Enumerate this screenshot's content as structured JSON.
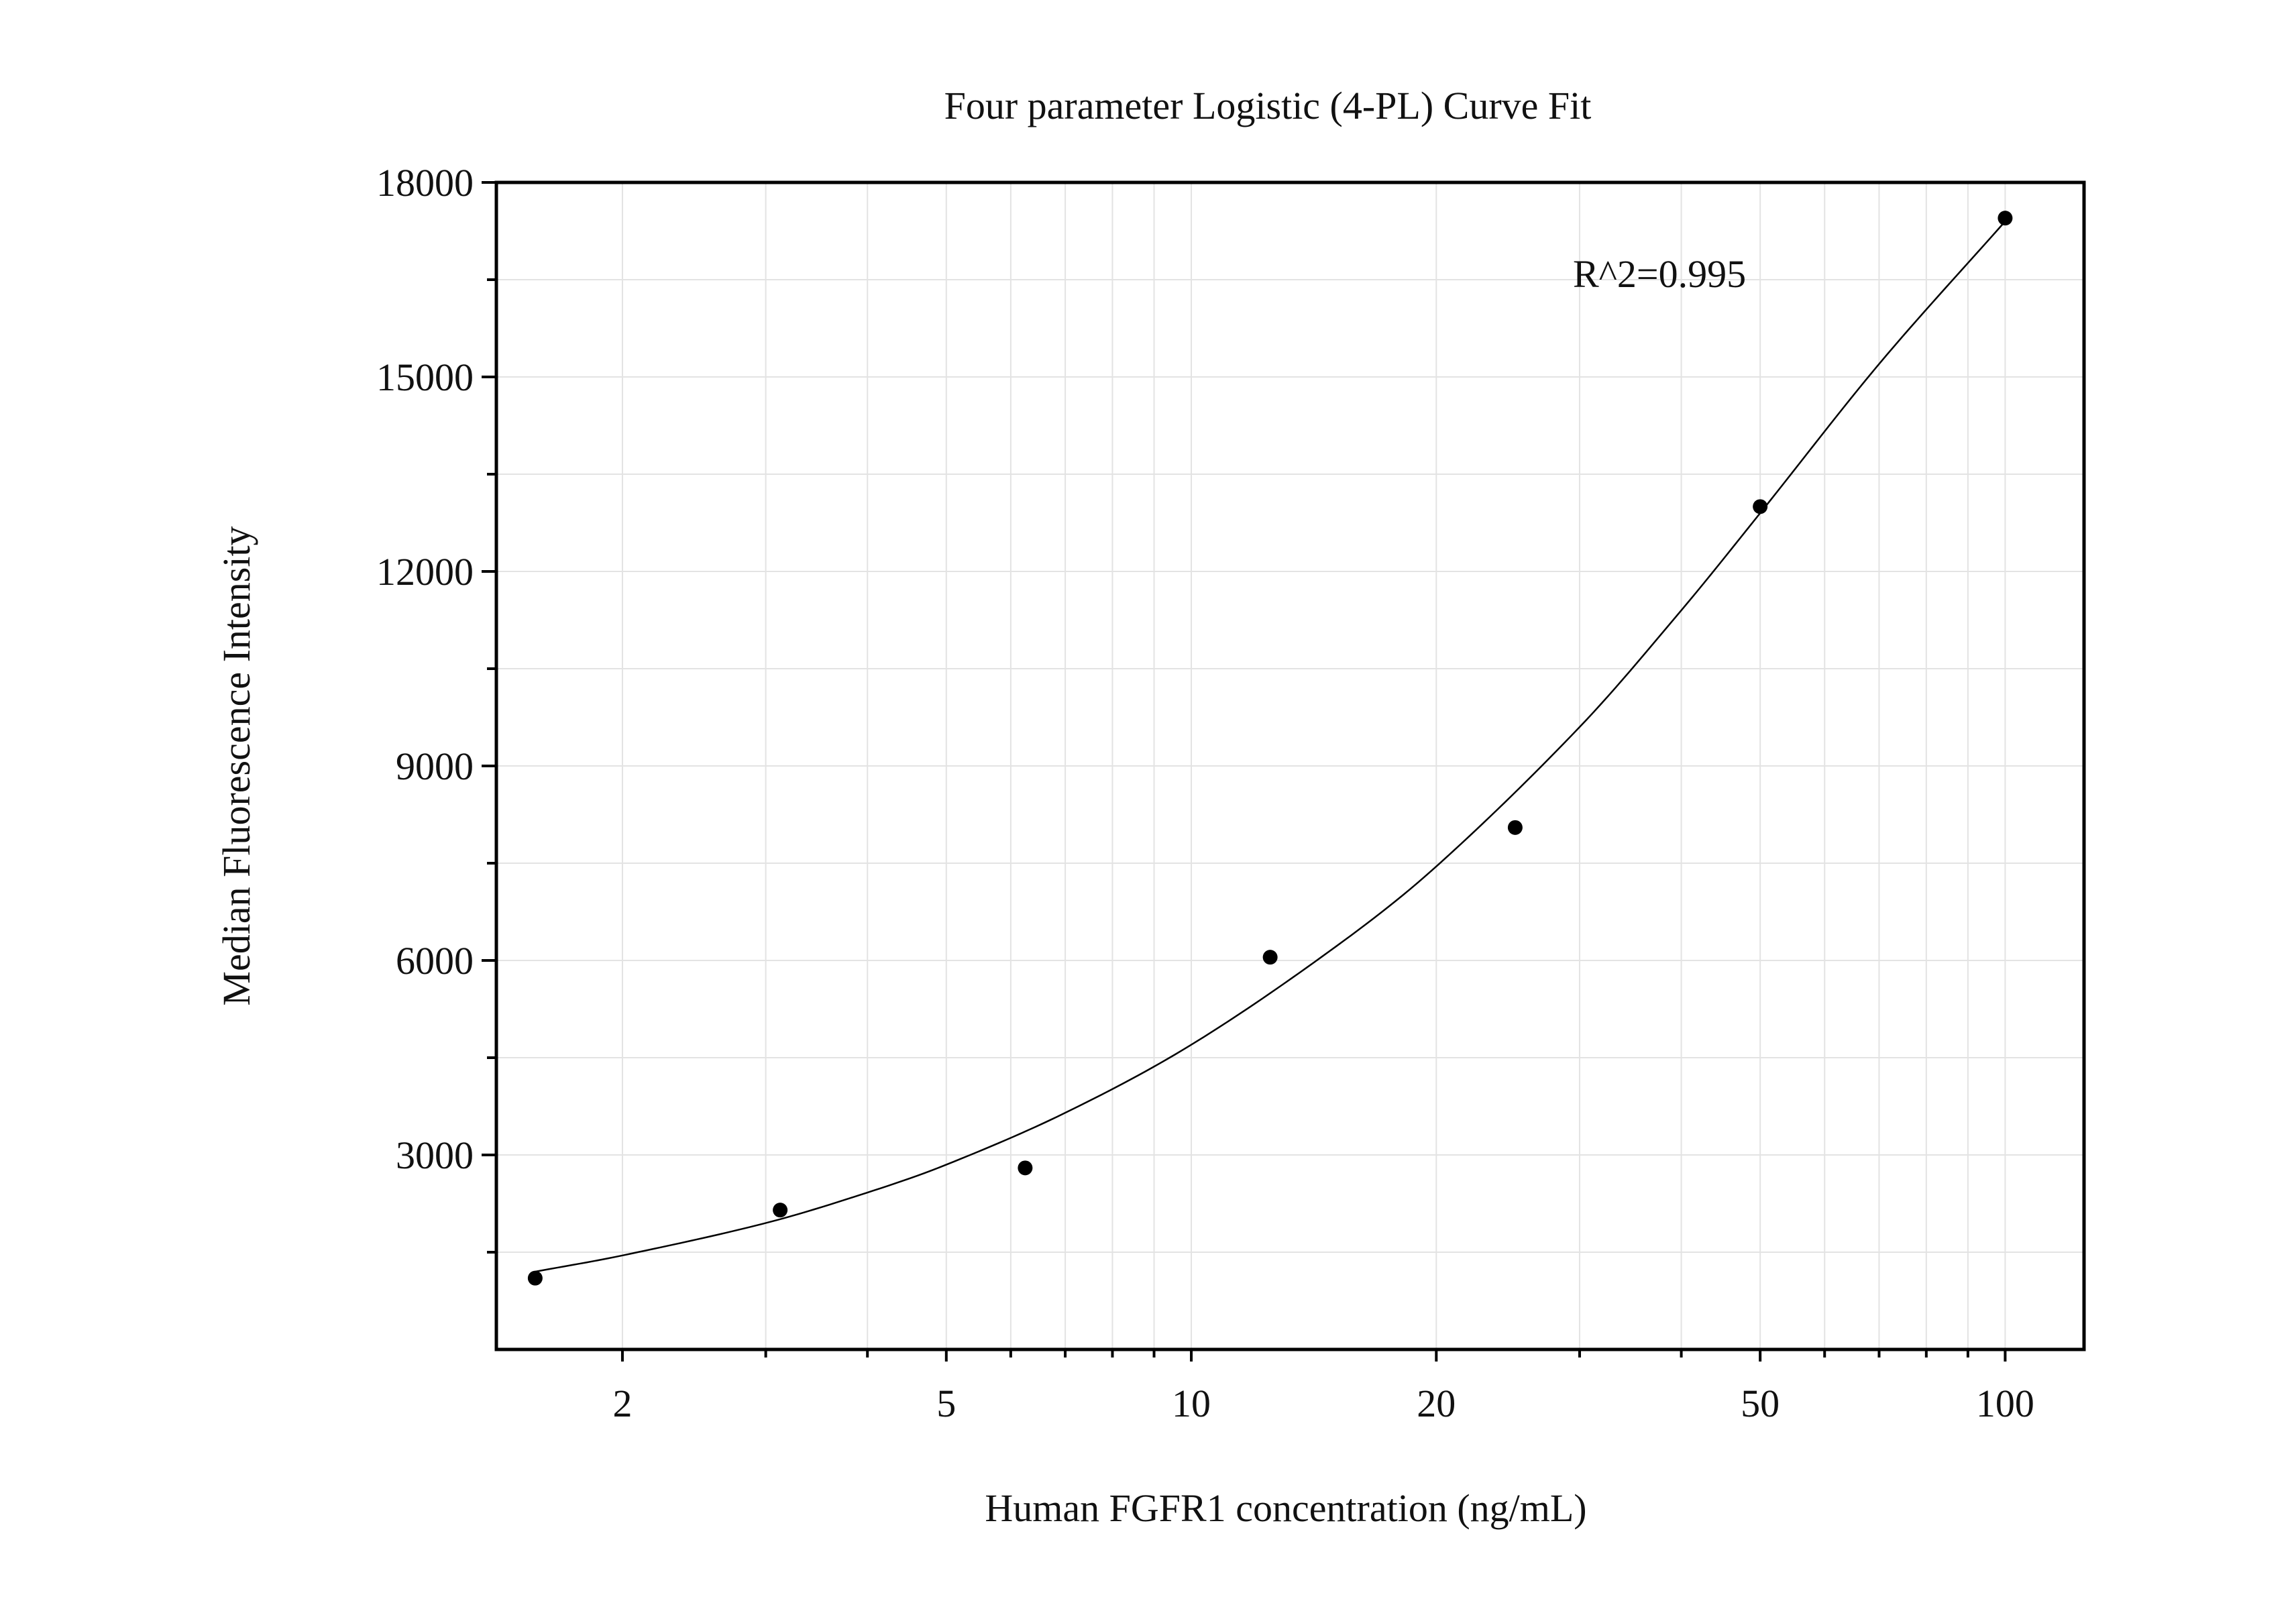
{
  "chart_data": {
    "type": "scatter",
    "title": "Four parameter Logistic (4-PL) Curve Fit",
    "xlabel": "Human FGFR1 concentration (ng/mL)",
    "ylabel": "Median Fluorescence Intensity",
    "x_scale": "log",
    "xlim": [
      1.4,
      125
    ],
    "ylim": [
      0,
      18000
    ],
    "x_ticks": [
      2,
      5,
      10,
      20,
      50,
      100
    ],
    "x_tick_labels": [
      "2",
      "5",
      "10",
      "20",
      "50",
      "100"
    ],
    "y_ticks": [
      3000,
      6000,
      9000,
      12000,
      15000,
      18000
    ],
    "y_tick_labels": [
      "3000",
      "6000",
      "9000",
      "12000",
      "15000",
      "18000"
    ],
    "grid": true,
    "annotation": "R^2=0.995",
    "series": [
      {
        "x": [
          1.5625,
          3.125,
          6.25,
          12.5,
          25,
          50,
          100
        ],
        "y": [
          1100,
          2150,
          2800,
          6050,
          8050,
          13000,
          17450
        ]
      }
    ],
    "fit_curve": {
      "x": [
        1.5625,
        2,
        3,
        4,
        5,
        7,
        10,
        15,
        20,
        30,
        40,
        50,
        70,
        100
      ],
      "y": [
        1200,
        1450,
        1950,
        2420,
        2850,
        3650,
        4700,
        6200,
        7450,
        9600,
        11400,
        12900,
        15200,
        17400
      ]
    },
    "colors": {
      "point": "#000000",
      "curve": "#000000",
      "grid": "#e3e3e3",
      "axis": "#000000"
    }
  }
}
